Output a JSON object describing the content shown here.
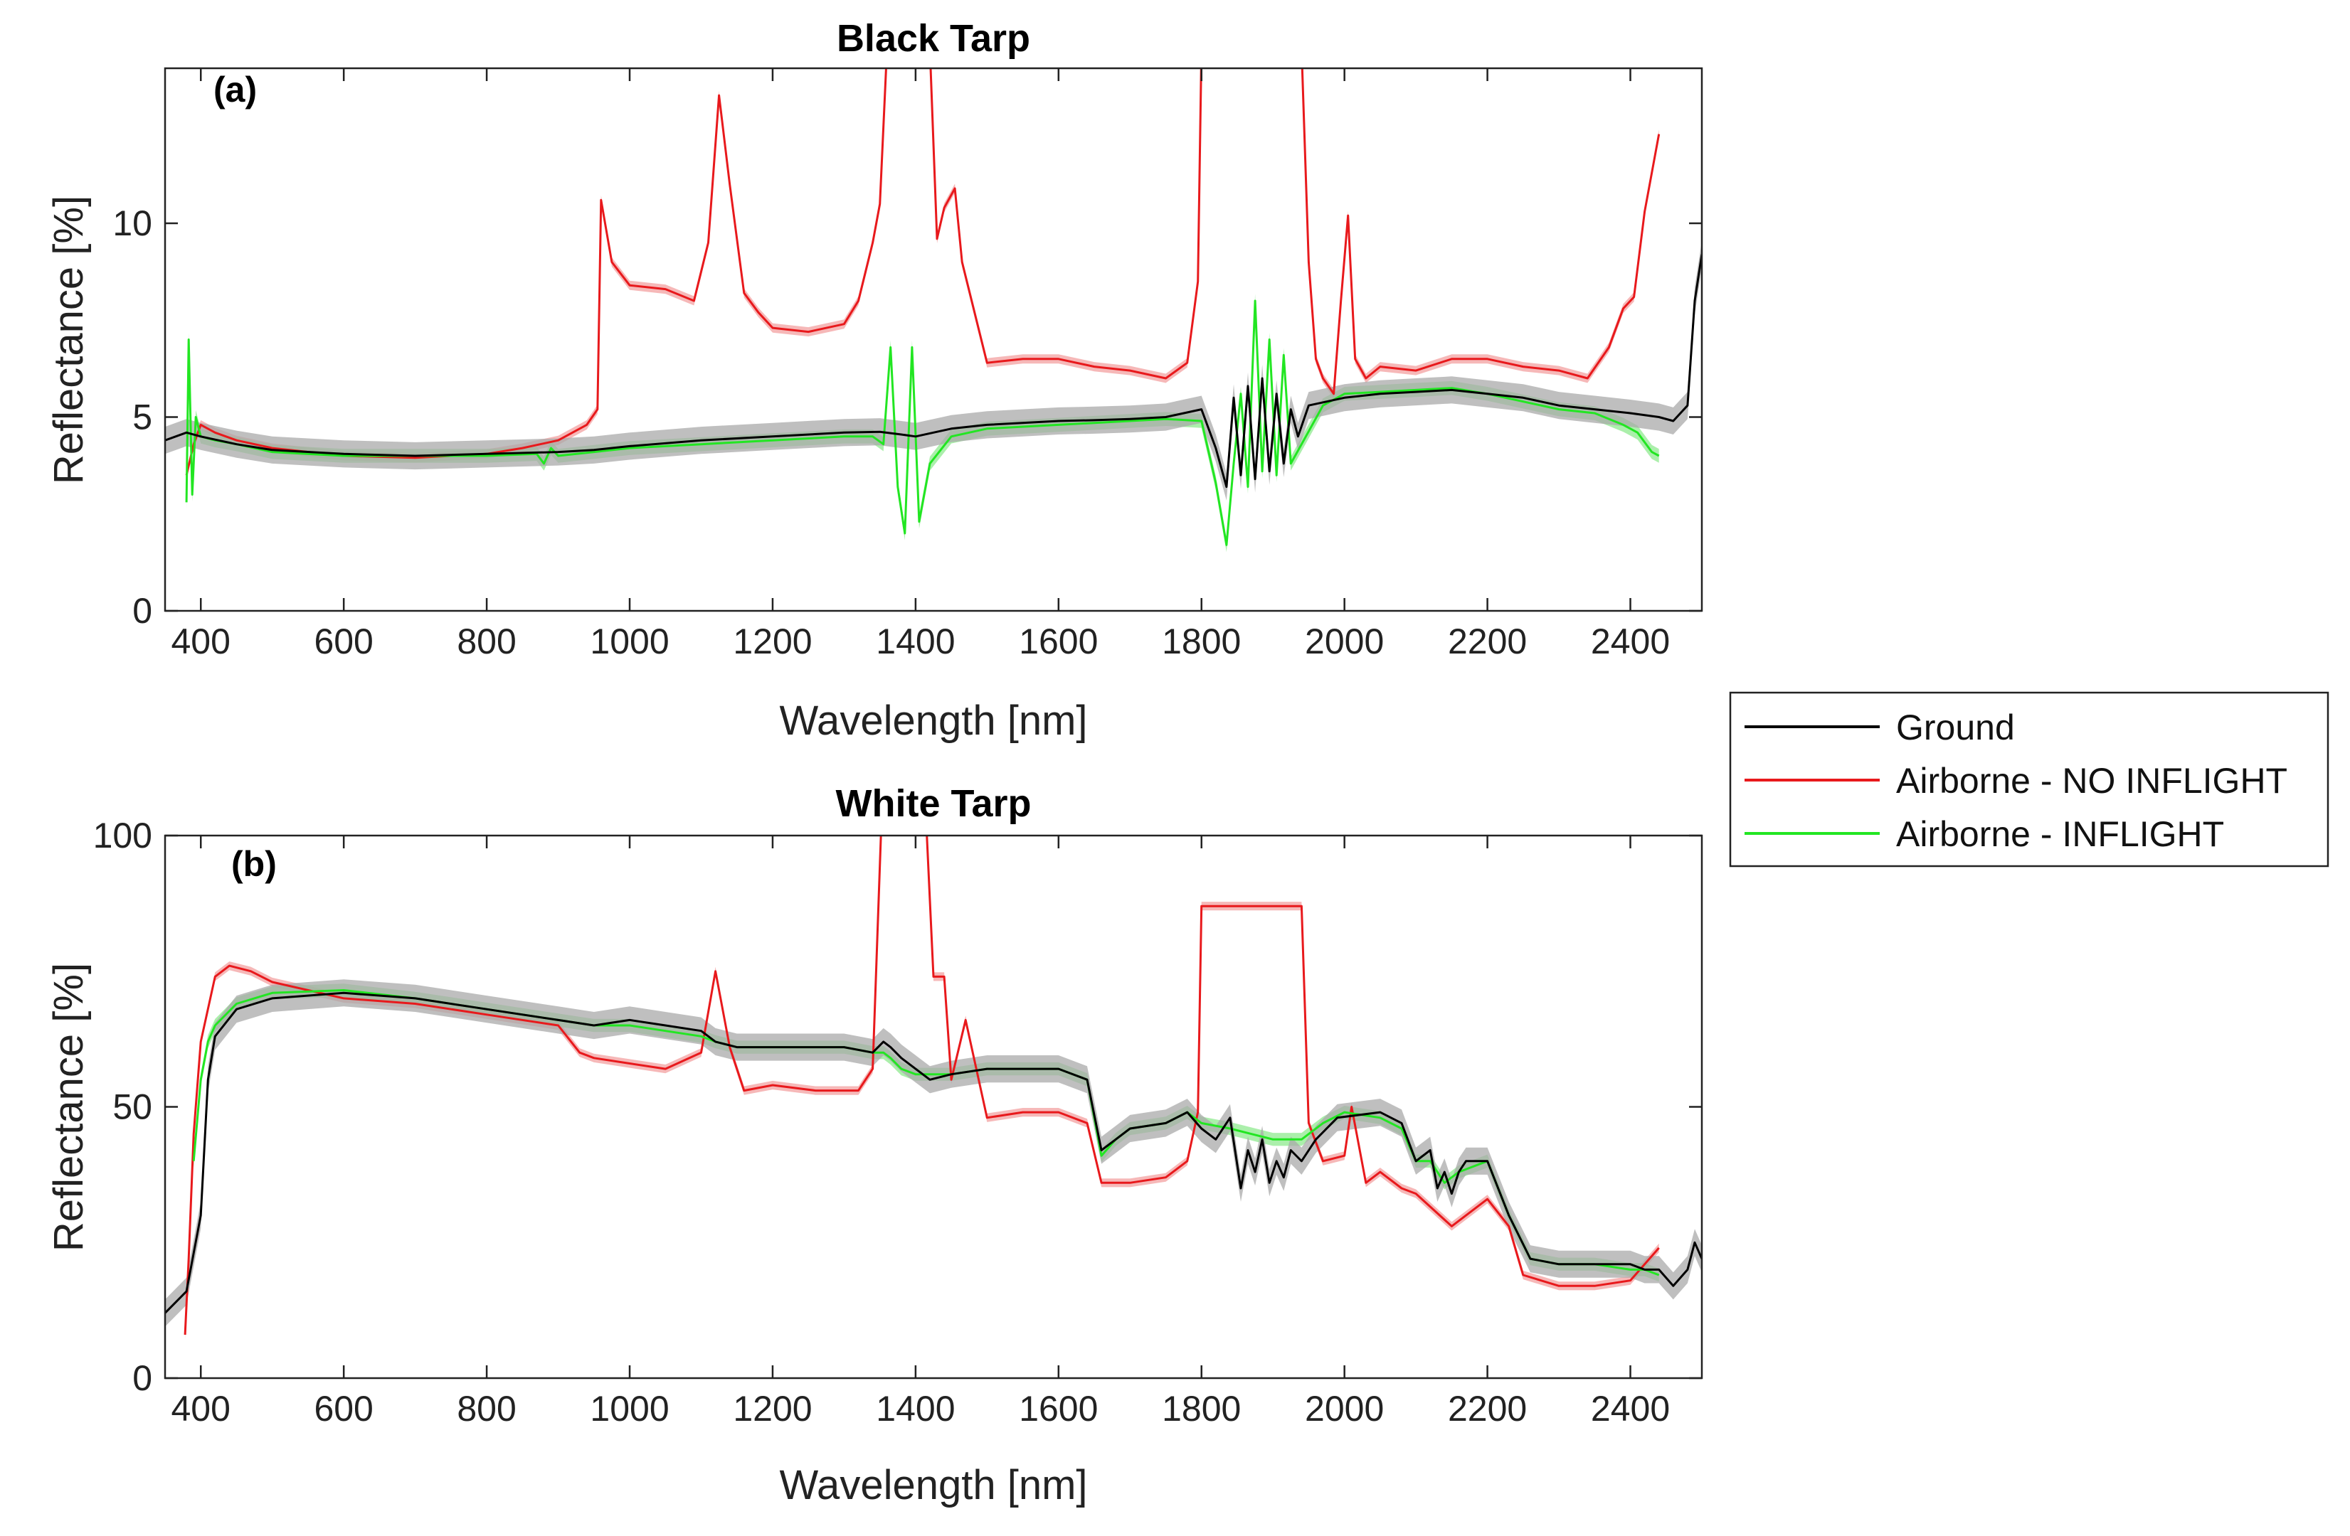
{
  "legend": {
    "entries": [
      {
        "label": "Ground",
        "color": "#000000"
      },
      {
        "label": "Airborne - NO INFLIGHT",
        "color": "#e8191c"
      },
      {
        "label": "Airborne - INFLIGHT",
        "color": "#22e622"
      }
    ]
  },
  "colors": {
    "ground": "#000000",
    "no_inflight": "#e8191c",
    "inflight": "#22e622",
    "band_gray": "#a9a9a9",
    "band_red": "#f29a9a",
    "band_green": "#88e888"
  },
  "chart_data": [
    {
      "type": "line",
      "title": "Black Tarp",
      "panel_label": "(a)",
      "xlabel": "Wavelength [nm]",
      "ylabel": "Reflectance [%]",
      "xlim": [
        350,
        2500
      ],
      "ylim": [
        0,
        14
      ],
      "xticks": [
        400,
        600,
        800,
        1000,
        1200,
        1400,
        1600,
        1800,
        2000,
        2200,
        2400
      ],
      "xtick_labels": [
        "400",
        "600",
        "800",
        "1000",
        "1200",
        "1400",
        "1600",
        "1800",
        "2000",
        "2200",
        "2400"
      ],
      "yticks": [
        0,
        5,
        10
      ],
      "ytick_labels": [
        "0",
        "5",
        "10"
      ],
      "series": [
        {
          "name": "Ground",
          "band": 0.35,
          "x": [
            350,
            380,
            400,
            450,
            500,
            600,
            700,
            800,
            900,
            950,
            1000,
            1100,
            1200,
            1300,
            1350,
            1380,
            1400,
            1450,
            1500,
            1600,
            1650,
            1700,
            1750,
            1800,
            1820,
            1835,
            1845,
            1855,
            1865,
            1875,
            1885,
            1895,
            1905,
            1915,
            1925,
            1935,
            1950,
            2000,
            2050,
            2100,
            2150,
            2200,
            2250,
            2300,
            2350,
            2400,
            2440,
            2460,
            2480,
            2490,
            2500
          ],
          "y": [
            4.4,
            4.6,
            4.5,
            4.3,
            4.15,
            4.05,
            4.0,
            4.05,
            4.1,
            4.15,
            4.25,
            4.4,
            4.5,
            4.6,
            4.62,
            4.55,
            4.5,
            4.7,
            4.8,
            4.9,
            4.92,
            4.95,
            5.0,
            5.2,
            4.2,
            3.2,
            5.5,
            3.5,
            5.8,
            3.4,
            6.0,
            3.6,
            5.6,
            3.8,
            5.2,
            4.5,
            5.3,
            5.5,
            5.6,
            5.65,
            5.7,
            5.6,
            5.5,
            5.3,
            5.2,
            5.1,
            5.0,
            4.9,
            5.3,
            8.0,
            9.2
          ]
        },
        {
          "name": "Airborne - NO INFLIGHT",
          "band": 0.12,
          "x": [
            380,
            390,
            400,
            420,
            450,
            500,
            600,
            700,
            800,
            850,
            900,
            940,
            955,
            960,
            975,
            1000,
            1050,
            1090,
            1110,
            1125,
            1140,
            1160,
            1180,
            1200,
            1250,
            1300,
            1320,
            1340,
            1350,
            1360,
            1420,
            1430,
            1440,
            1455,
            1465,
            1500,
            1550,
            1600,
            1650,
            1700,
            1750,
            1780,
            1795,
            1800,
            1940,
            1950,
            1960,
            1970,
            1985,
            1995,
            2005,
            2015,
            2030,
            2050,
            2100,
            2150,
            2200,
            2250,
            2300,
            2340,
            2370,
            2390,
            2405,
            2420,
            2440
          ],
          "y": [
            3.5,
            4.3,
            4.8,
            4.6,
            4.4,
            4.2,
            4.0,
            3.95,
            4.05,
            4.2,
            4.4,
            4.8,
            5.2,
            10.6,
            9.0,
            8.4,
            8.3,
            8.0,
            9.5,
            13.3,
            11.0,
            8.2,
            7.7,
            7.3,
            7.2,
            7.4,
            8.0,
            9.5,
            10.5,
            14.5,
            14.5,
            9.6,
            10.4,
            10.9,
            9.0,
            6.4,
            6.5,
            6.5,
            6.3,
            6.2,
            6.0,
            6.4,
            8.5,
            14.5,
            14.5,
            9.0,
            6.5,
            6.0,
            5.6,
            8.0,
            10.2,
            6.5,
            6.0,
            6.3,
            6.2,
            6.5,
            6.5,
            6.3,
            6.2,
            6.0,
            6.8,
            7.8,
            8.1,
            10.3,
            12.3
          ]
        },
        {
          "name": "Airborne - INFLIGHT",
          "band": 0.18,
          "x": [
            380,
            383,
            388,
            393,
            400,
            420,
            450,
            500,
            600,
            700,
            800,
            870,
            880,
            890,
            900,
            950,
            1000,
            1100,
            1200,
            1300,
            1340,
            1355,
            1365,
            1375,
            1385,
            1395,
            1405,
            1420,
            1450,
            1500,
            1600,
            1650,
            1700,
            1750,
            1800,
            1820,
            1835,
            1845,
            1855,
            1865,
            1875,
            1885,
            1895,
            1905,
            1915,
            1925,
            1940,
            1970,
            2000,
            2050,
            2100,
            2150,
            2200,
            2250,
            2300,
            2350,
            2390,
            2410,
            2430,
            2440
          ],
          "y": [
            2.8,
            7.0,
            3.0,
            5.0,
            4.5,
            4.4,
            4.3,
            4.1,
            4.0,
            4.0,
            4.0,
            4.05,
            3.8,
            4.2,
            4.0,
            4.1,
            4.2,
            4.3,
            4.4,
            4.5,
            4.5,
            4.3,
            6.8,
            3.2,
            2.0,
            6.8,
            2.3,
            3.8,
            4.5,
            4.7,
            4.8,
            4.85,
            4.9,
            4.95,
            4.9,
            3.3,
            1.7,
            3.8,
            5.6,
            3.2,
            8.0,
            3.6,
            7.0,
            3.5,
            6.6,
            3.8,
            4.3,
            5.3,
            5.6,
            5.65,
            5.7,
            5.75,
            5.6,
            5.4,
            5.2,
            5.1,
            4.8,
            4.6,
            4.1,
            4.0
          ]
        }
      ]
    },
    {
      "type": "line",
      "title": "White Tarp",
      "panel_label": "(b)",
      "xlabel": "Wavelength [nm]",
      "ylabel": "Reflectance [%]",
      "xlim": [
        350,
        2500
      ],
      "ylim": [
        0,
        100
      ],
      "xticks": [
        400,
        600,
        800,
        1000,
        1200,
        1400,
        1600,
        1800,
        2000,
        2200,
        2400
      ],
      "xtick_labels": [
        "400",
        "600",
        "800",
        "1000",
        "1200",
        "1400",
        "1600",
        "1800",
        "2000",
        "2200",
        "2400"
      ],
      "yticks": [
        0,
        50,
        100
      ],
      "ytick_labels": [
        "0",
        "50",
        "100"
      ],
      "series": [
        {
          "name": "Ground",
          "band": 2.5,
          "x": [
            350,
            380,
            400,
            410,
            420,
            450,
            500,
            600,
            700,
            800,
            900,
            950,
            1000,
            1050,
            1100,
            1120,
            1150,
            1200,
            1300,
            1340,
            1355,
            1365,
            1380,
            1400,
            1420,
            1450,
            1500,
            1600,
            1640,
            1660,
            1680,
            1700,
            1750,
            1780,
            1800,
            1820,
            1840,
            1855,
            1865,
            1875,
            1885,
            1895,
            1905,
            1915,
            1925,
            1940,
            1960,
            1990,
            2050,
            2080,
            2100,
            2120,
            2130,
            2140,
            2150,
            2160,
            2170,
            2200,
            2230,
            2260,
            2300,
            2350,
            2400,
            2420,
            2440,
            2460,
            2480,
            2490,
            2500
          ],
          "y": [
            12,
            16,
            30,
            55,
            63,
            68,
            70,
            71,
            70,
            68,
            66,
            65,
            66,
            65,
            64,
            62,
            61,
            61,
            61,
            60,
            62,
            61,
            59,
            57,
            55,
            56,
            57,
            57,
            55,
            42,
            44,
            46,
            47,
            49,
            46,
            44,
            48,
            35,
            42,
            38,
            44,
            36,
            40,
            37,
            42,
            40,
            44,
            48,
            49,
            47,
            40,
            42,
            35,
            38,
            34,
            38,
            40,
            40,
            30,
            22,
            21,
            21,
            21,
            20,
            20,
            17,
            20,
            25,
            22
          ]
        },
        {
          "name": "Airborne - NO INFLIGHT",
          "band": 0.8,
          "x": [
            378,
            383,
            390,
            400,
            420,
            440,
            470,
            500,
            600,
            700,
            800,
            900,
            930,
            950,
            1000,
            1050,
            1100,
            1120,
            1140,
            1160,
            1200,
            1260,
            1320,
            1340,
            1352,
            1415,
            1425,
            1440,
            1450,
            1470,
            1500,
            1550,
            1600,
            1640,
            1660,
            1700,
            1750,
            1780,
            1795,
            1800,
            1940,
            1950,
            1970,
            2000,
            2010,
            2030,
            2050,
            2080,
            2100,
            2150,
            2200,
            2230,
            2250,
            2300,
            2350,
            2400,
            2440
          ],
          "y": [
            8,
            22,
            45,
            62,
            74,
            76,
            75,
            73,
            70,
            69,
            67,
            65,
            60,
            59,
            58,
            57,
            60,
            75,
            61,
            53,
            54,
            53,
            53,
            57,
            102,
            102,
            74,
            74,
            55,
            66,
            48,
            49,
            49,
            47,
            36,
            36,
            37,
            40,
            49,
            87,
            87,
            47,
            40,
            41,
            50,
            36,
            38,
            35,
            34,
            28,
            33,
            28,
            19,
            17,
            17,
            18,
            24
          ]
        },
        {
          "name": "Airborne - INFLIGHT",
          "band": 1.2,
          "x": [
            390,
            400,
            410,
            420,
            450,
            500,
            600,
            700,
            800,
            900,
            950,
            1000,
            1050,
            1100,
            1120,
            1150,
            1200,
            1300,
            1340,
            1355,
            1365,
            1380,
            1400,
            1420,
            1450,
            1500,
            1600,
            1640,
            1660,
            1680,
            1700,
            1750,
            1780,
            1800,
            1840,
            1870,
            1900,
            1940,
            1970,
            2000,
            2050,
            2080,
            2100,
            2120,
            2140,
            2160,
            2200,
            2230,
            2260,
            2300,
            2350,
            2400,
            2420,
            2440
          ],
          "y": [
            40,
            55,
            62,
            65,
            69,
            71,
            71.5,
            70,
            68,
            66,
            65,
            65,
            64,
            63,
            62,
            61,
            61,
            61,
            60,
            60,
            59,
            57,
            56,
            56,
            56,
            57,
            57,
            55,
            41,
            44,
            46,
            47,
            49,
            47,
            46,
            45,
            44,
            44,
            47,
            49,
            48,
            46,
            40,
            40,
            36,
            38,
            40,
            30,
            22,
            21,
            21,
            20,
            20,
            19
          ]
        }
      ]
    }
  ]
}
